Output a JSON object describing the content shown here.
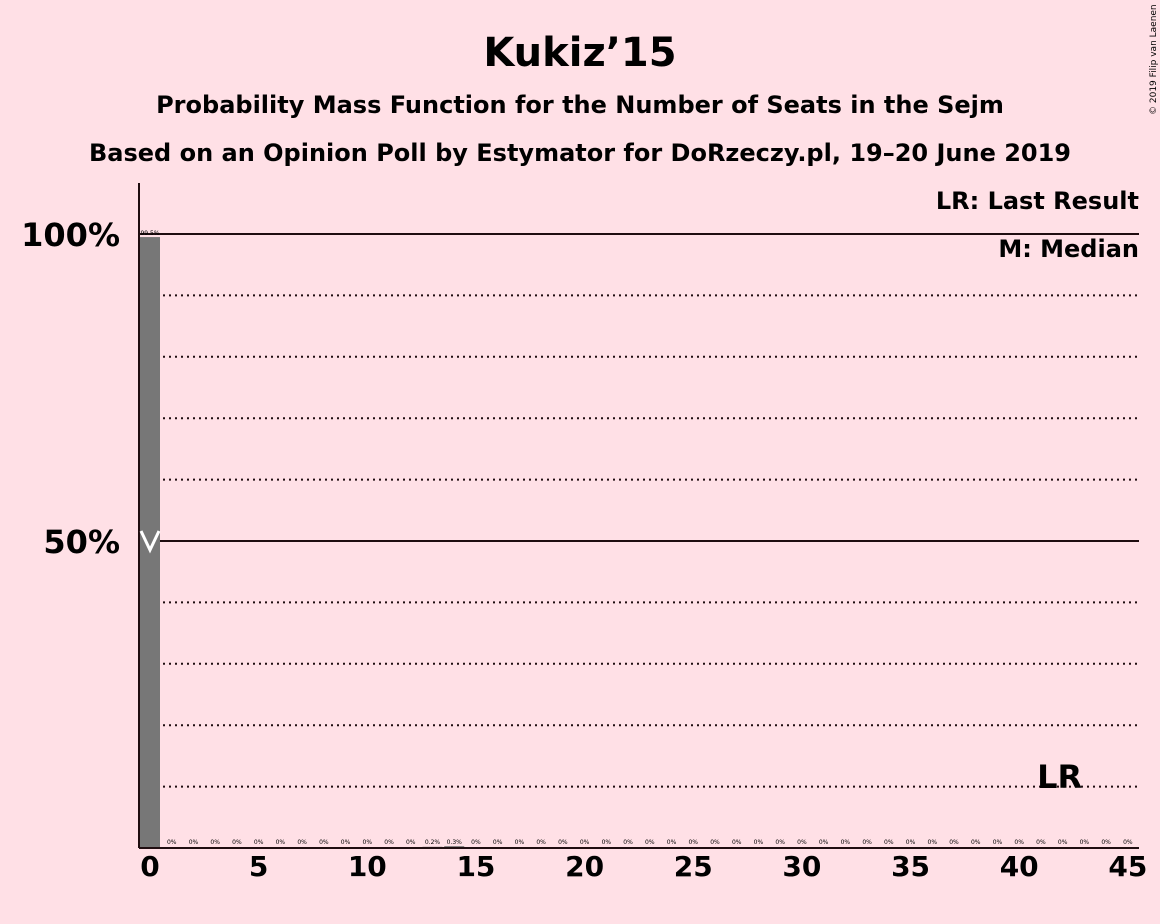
{
  "chart_data": {
    "type": "bar",
    "title": "Kukiz’15",
    "subtitle": "Probability Mass Function for the Number of Seats in the Sejm",
    "subtitle2": "Based on an Opinion Poll by Estymator for DoRzeczy.pl, 19–20 June 2019",
    "copyright": "© 2019 Filip van Laenen",
    "legend": {
      "last_result": "LR: Last Result",
      "median": "M: Median"
    },
    "lr_marker": {
      "label": "LR",
      "x": 42
    },
    "median": 0,
    "xlim": [
      0,
      45
    ],
    "ylim": [
      0,
      100
    ],
    "x_ticks": [
      "0",
      "5",
      "10",
      "15",
      "20",
      "25",
      "30",
      "35",
      "40",
      "45"
    ],
    "y_ticks": [
      "50%",
      "100%"
    ],
    "x": [
      0,
      1,
      2,
      3,
      4,
      5,
      6,
      7,
      8,
      9,
      10,
      11,
      12,
      13,
      14,
      15,
      16,
      17,
      18,
      19,
      20,
      21,
      22,
      23,
      24,
      25,
      26,
      27,
      28,
      29,
      30,
      31,
      32,
      33,
      34,
      35,
      36,
      37,
      38,
      39,
      40,
      41,
      42,
      43,
      44,
      45
    ],
    "values": [
      99.5,
      0,
      0,
      0,
      0,
      0,
      0,
      0,
      0,
      0,
      0,
      0,
      0,
      0.2,
      0.3,
      0,
      0,
      0,
      0,
      0,
      0,
      0,
      0,
      0,
      0,
      0,
      0,
      0,
      0,
      0,
      0,
      0,
      0,
      0,
      0,
      0,
      0,
      0,
      0,
      0,
      0,
      0,
      0,
      0,
      0,
      0
    ],
    "labels": [
      "99.5%",
      "0%",
      "0%",
      "0%",
      "0%",
      "0%",
      "0%",
      "0%",
      "0%",
      "0%",
      "0%",
      "0%",
      "0%",
      "0.2%",
      "0.3%",
      "0%",
      "0%",
      "0%",
      "0%",
      "0%",
      "0%",
      "0%",
      "0%",
      "0%",
      "0%",
      "0%",
      "0%",
      "0%",
      "0%",
      "0%",
      "0%",
      "0%",
      "0%",
      "0%",
      "0%",
      "0%",
      "0%",
      "0%",
      "0%",
      "0%",
      "0%",
      "0%",
      "0%",
      "0%",
      "0%",
      "0%"
    ],
    "colors": {
      "bar": "#777777",
      "background": "#ffe0e6",
      "text": "#1f0d10",
      "median_mark": "#ffffff"
    },
    "grid": true
  }
}
